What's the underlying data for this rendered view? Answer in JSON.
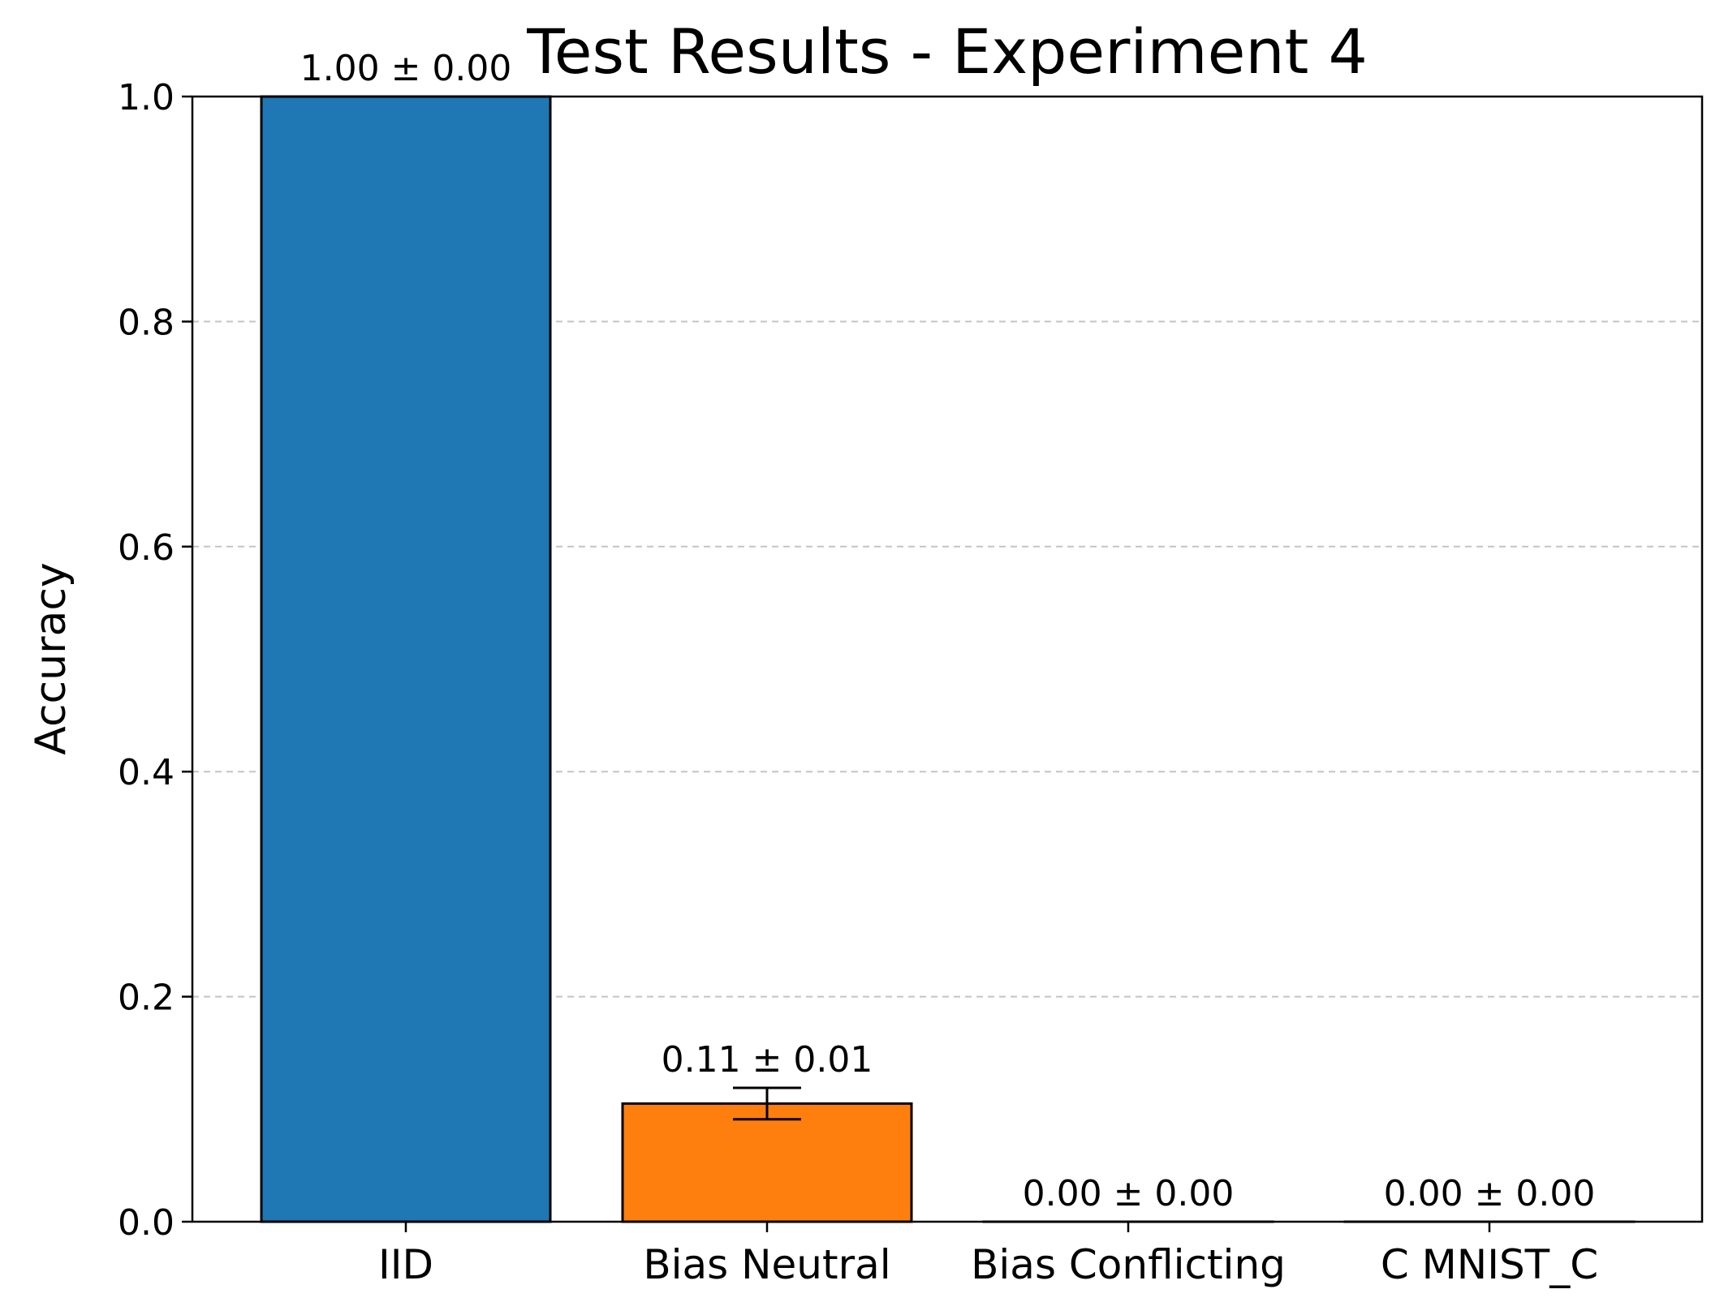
{
  "chart_data": {
    "type": "bar",
    "title": "Test Results - Experiment 4",
    "xlabel": "",
    "ylabel": "Accuracy",
    "categories": [
      "IID",
      "Bias Neutral",
      "Bias Conflicting",
      "C MNIST_C"
    ],
    "values": [
      1.0,
      0.105,
      0.0,
      0.0
    ],
    "errors": [
      0.0,
      0.014,
      0.0,
      0.0
    ],
    "data_labels": [
      "1.00 ± 0.00",
      "0.11 ± 0.01",
      "0.00 ± 0.00",
      "0.00 ± 0.00"
    ],
    "colors": [
      "#1f77b4",
      "#ff7f0e",
      "#2ca02c",
      "#d62728"
    ],
    "ylim": [
      0,
      1.0
    ],
    "yticks": [
      0.0,
      0.2,
      0.4,
      0.6,
      0.8,
      1.0
    ],
    "ytick_labels": [
      "0.0",
      "0.2",
      "0.4",
      "0.6",
      "0.8",
      "1.0"
    ],
    "grid": "y-dashed",
    "legend": "none"
  }
}
